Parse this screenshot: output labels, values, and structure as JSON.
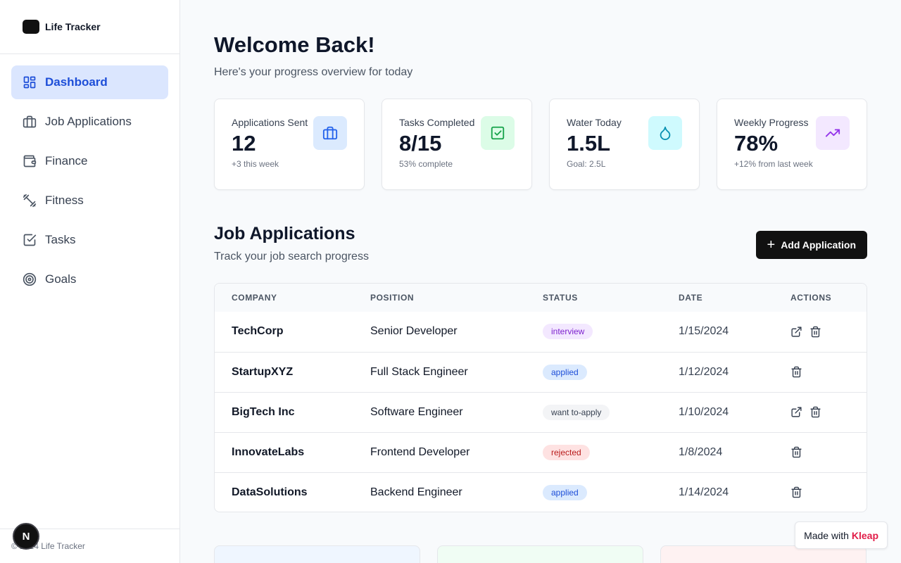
{
  "app": {
    "name": "Life Tracker"
  },
  "sidebar": {
    "items": [
      {
        "label": "Dashboard",
        "icon": "dashboard-icon",
        "active": true
      },
      {
        "label": "Job Applications",
        "icon": "briefcase-icon"
      },
      {
        "label": "Finance",
        "icon": "wallet-icon"
      },
      {
        "label": "Fitness",
        "icon": "dumbbell-icon"
      },
      {
        "label": "Tasks",
        "icon": "checkbox-icon"
      },
      {
        "label": "Goals",
        "icon": "target-icon"
      }
    ],
    "footer": "© 2024 Life Tracker"
  },
  "header": {
    "title": "Welcome Back!",
    "subtitle": "Here's your progress overview for today"
  },
  "stats": [
    {
      "label": "Applications Sent",
      "value": "12",
      "note": "+3 this week",
      "icon": "briefcase-icon",
      "icon_bg": "#dbeafe",
      "icon_color": "#2563eb"
    },
    {
      "label": "Tasks Completed",
      "value": "8/15",
      "note": "53% complete",
      "icon": "check-square-icon",
      "icon_bg": "#dcfce7",
      "icon_color": "#16a34a"
    },
    {
      "label": "Water Today",
      "value": "1.5L",
      "note": "Goal: 2.5L",
      "icon": "droplet-icon",
      "icon_bg": "#cffafe",
      "icon_color": "#0891b2"
    },
    {
      "label": "Weekly Progress",
      "value": "78%",
      "note": "+12% from last week",
      "icon": "trending-up-icon",
      "icon_bg": "#f3e8ff",
      "icon_color": "#9333ea"
    }
  ],
  "jobs": {
    "title": "Job Applications",
    "subtitle": "Track your job search progress",
    "add_label": "Add Application",
    "columns": [
      "COMPANY",
      "POSITION",
      "STATUS",
      "DATE",
      "ACTIONS"
    ],
    "rows": [
      {
        "company": "TechCorp",
        "position": "Senior Developer",
        "status": "interview",
        "date": "1/15/2024",
        "has_link": true
      },
      {
        "company": "StartupXYZ",
        "position": "Full Stack Engineer",
        "status": "applied",
        "date": "1/12/2024",
        "has_link": false
      },
      {
        "company": "BigTech Inc",
        "position": "Software Engineer",
        "status": "want to-apply",
        "date": "1/10/2024",
        "has_link": true
      },
      {
        "company": "InnovateLabs",
        "position": "Frontend Developer",
        "status": "rejected",
        "date": "1/8/2024",
        "has_link": false
      },
      {
        "company": "DataSolutions",
        "position": "Backend Engineer",
        "status": "applied",
        "date": "1/14/2024",
        "has_link": false
      }
    ],
    "status_colors": {
      "interview": {
        "bg": "#f3e8ff",
        "fg": "#7e22ce"
      },
      "applied": {
        "bg": "#dbeafe",
        "fg": "#1d4ed8"
      },
      "want to-apply": {
        "bg": "#f3f4f6",
        "fg": "#374151"
      },
      "rejected": {
        "bg": "#fee2e2",
        "fg": "#b91c1c"
      }
    }
  },
  "bottom_cards": [
    {
      "bg": "#eff6ff"
    },
    {
      "bg": "#f0fdf4"
    },
    {
      "bg": "#fef2f2"
    }
  ],
  "badge": {
    "n": "N"
  },
  "kleap": {
    "prefix": "Made with",
    "brand": "Kleap"
  },
  "accent": "#1d4ed8"
}
